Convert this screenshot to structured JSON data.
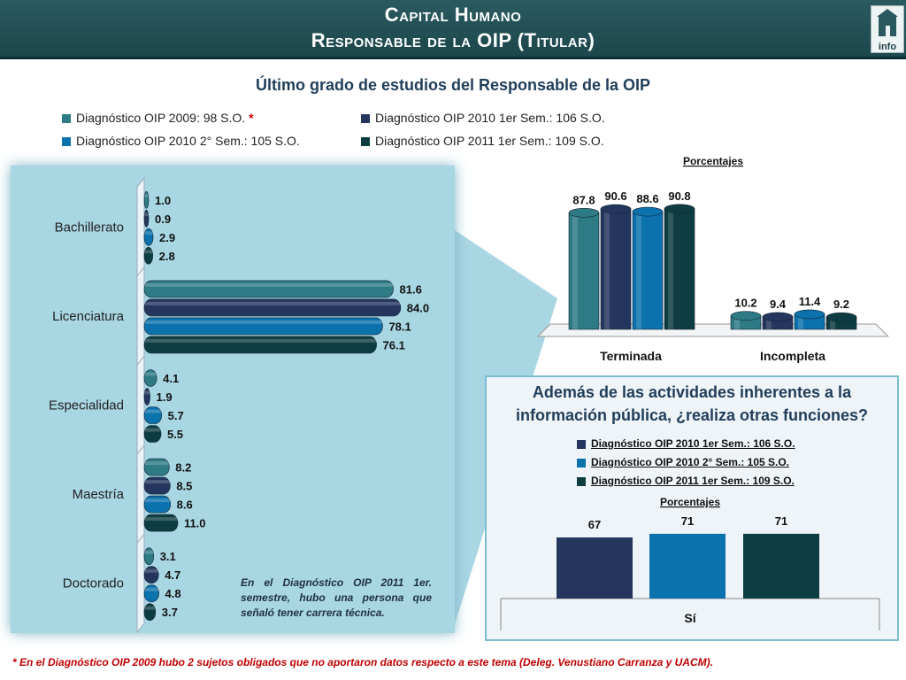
{
  "header": {
    "title_line1": "Capital Humano",
    "title_line2": "Responsable de la OIP (Titular)",
    "logo_text": "info"
  },
  "subtitle": "Último grado de estudios del Responsable de la OIP",
  "legend": [
    {
      "label": "Diagnóstico OIP 2009: 98 S.O.",
      "color": "#2e7b86",
      "mark": "*"
    },
    {
      "label": "Diagnóstico OIP 2010 1er Sem.: 106 S.O.",
      "color": "#24365e"
    },
    {
      "label": "Diagnóstico OIP 2010 2° Sem.: 105 S.O.",
      "color": "#0b72ae"
    },
    {
      "label": "Diagnóstico OIP 2011 1er Sem.: 109 S.O.",
      "color": "#0d3d42"
    }
  ],
  "chart_data": [
    {
      "type": "bar",
      "orientation": "horizontal",
      "categories": [
        "Bachillerato",
        "Licenciatura",
        "Especialidad",
        "Maestría",
        "Doctorado"
      ],
      "series": [
        {
          "name": "Diagnóstico OIP 2009: 98 S.O.",
          "values": [
            1.0,
            81.6,
            4.1,
            8.2,
            3.1
          ]
        },
        {
          "name": "Diagnóstico OIP 2010 1er Sem.: 106 S.O.",
          "values": [
            0.9,
            84.0,
            1.9,
            8.5,
            4.7
          ]
        },
        {
          "name": "Diagnóstico OIP 2010 2° Sem.: 105 S.O.",
          "values": [
            2.9,
            78.1,
            5.7,
            8.6,
            4.8
          ]
        },
        {
          "name": "Diagnóstico OIP 2011 1er Sem.: 109 S.O.",
          "values": [
            2.8,
            76.1,
            5.5,
            11.0,
            3.7
          ]
        }
      ],
      "xlim": [
        0,
        100
      ],
      "value_format": "0.0"
    },
    {
      "type": "bar",
      "title": "Porcentajes",
      "categories": [
        "Terminada",
        "Incompleta"
      ],
      "series": [
        {
          "name": "Diagnóstico OIP 2009: 98 S.O.",
          "values": [
            87.8,
            10.2
          ]
        },
        {
          "name": "Diagnóstico OIP 2010 1er Sem.: 106 S.O.",
          "values": [
            90.6,
            9.4
          ]
        },
        {
          "name": "Diagnóstico OIP 2010 2° Sem.: 105 S.O.",
          "values": [
            88.6,
            11.4
          ]
        },
        {
          "name": "Diagnóstico OIP 2011 1er Sem.: 109 S.O.",
          "values": [
            90.8,
            9.2
          ]
        }
      ],
      "ylim": [
        0,
        100
      ],
      "value_format": "0.0"
    },
    {
      "type": "bar",
      "title": "Porcentajes",
      "categories": [
        "Sí"
      ],
      "series": [
        {
          "name": "Diagnóstico OIP 2010 1er Sem.: 106 S.O.",
          "values": [
            67
          ]
        },
        {
          "name": "Diagnóstico OIP 2010 2° Sem.: 105 S.O.",
          "values": [
            71
          ]
        },
        {
          "name": "Diagnóstico OIP 2011 1er Sem.: 109 S.O.",
          "values": [
            71
          ]
        }
      ],
      "ylim": [
        0,
        100
      ],
      "value_format": "0"
    }
  ],
  "note": "En el Diagnóstico OIP 2011 1er. semestre, hubo una persona que señaló tener carrera técnica.",
  "question": {
    "text": "Además de las actividades inherentes a la información pública, ¿realiza otras funciones?",
    "legend": [
      {
        "label": "Diagnóstico OIP 2010 1er Sem.: 106 S.O.",
        "color": "#24365e"
      },
      {
        "label": "Diagnóstico OIP 2010 2° Sem.: 105 S.O.",
        "color": "#0b72ae"
      },
      {
        "label": "Diagnóstico OIP 2011 1er Sem.: 109 S.O.",
        "color": "#0d3d42"
      }
    ]
  },
  "footnote": "*   En el Diagnóstico OIP 2009 hubo 2 sujetos obligados que no aportaron datos respecto a este tema (Deleg. Venustiano Carranza y UACM)."
}
